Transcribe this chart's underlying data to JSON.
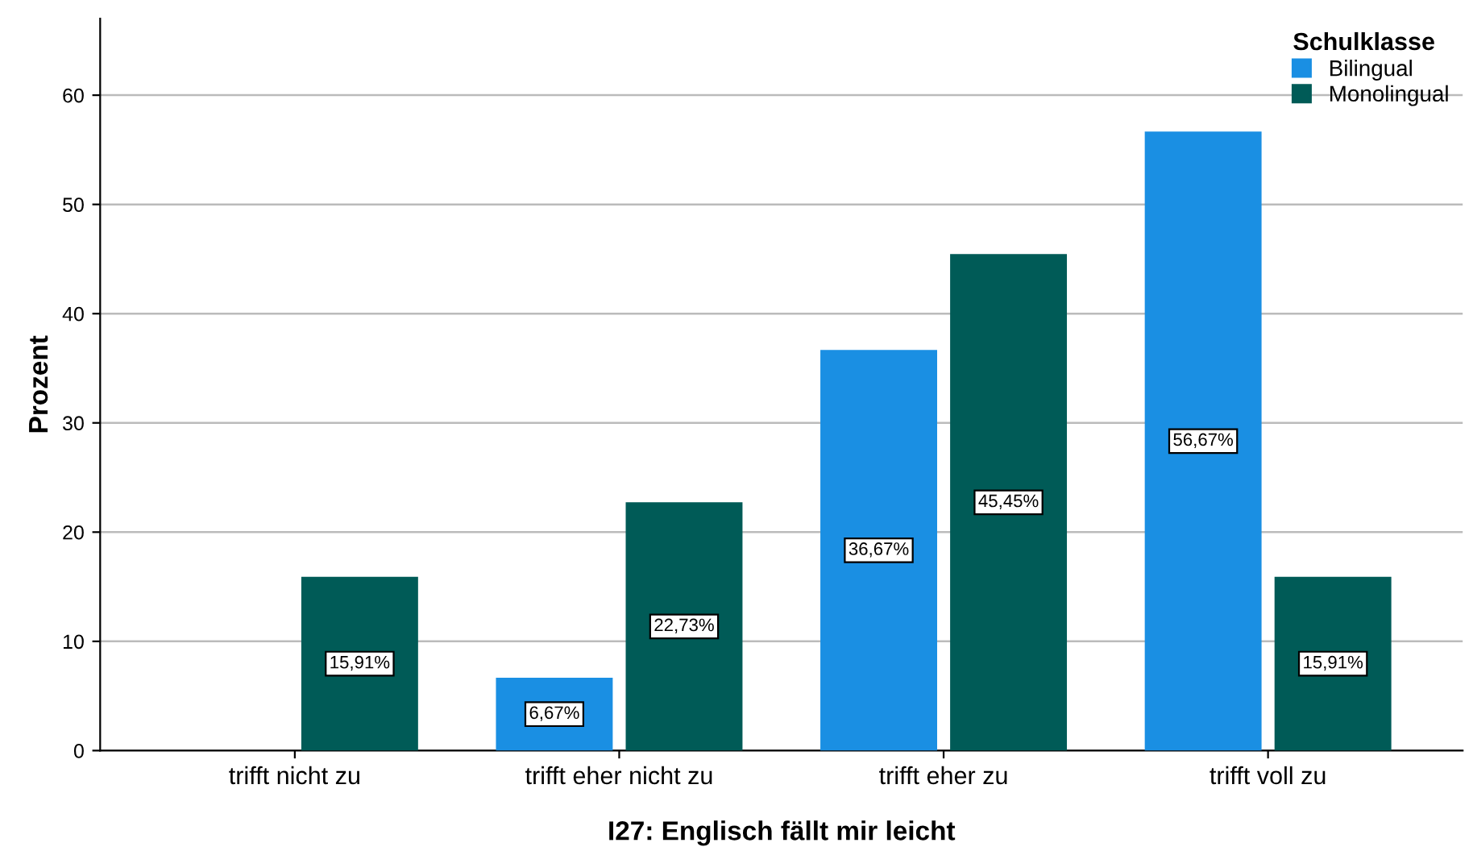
{
  "chart_data": {
    "type": "bar",
    "xlabel": "I27: Englisch fällt mir leicht",
    "ylabel": "Prozent",
    "legend_title": "Schulklasse",
    "categories": [
      "trifft nicht zu",
      "trifft eher nicht zu",
      "trifft eher zu",
      "trifft voll zu"
    ],
    "series": [
      {
        "name": "Bilingual",
        "color": "#1a8fe3",
        "values": [
          null,
          6.67,
          36.67,
          56.67
        ],
        "value_labels": [
          null,
          "6,67%",
          "36,67%",
          "56,67%"
        ]
      },
      {
        "name": "Monolingual",
        "color": "#005b57",
        "values": [
          15.91,
          22.73,
          45.45,
          15.91
        ],
        "value_labels": [
          "15,91%",
          "22,73%",
          "45,45%",
          "15,91%"
        ]
      }
    ],
    "ylim": [
      0,
      67
    ],
    "yticks": [
      0,
      10,
      20,
      30,
      40,
      50,
      60
    ],
    "grid": "y",
    "legend": "top right"
  }
}
